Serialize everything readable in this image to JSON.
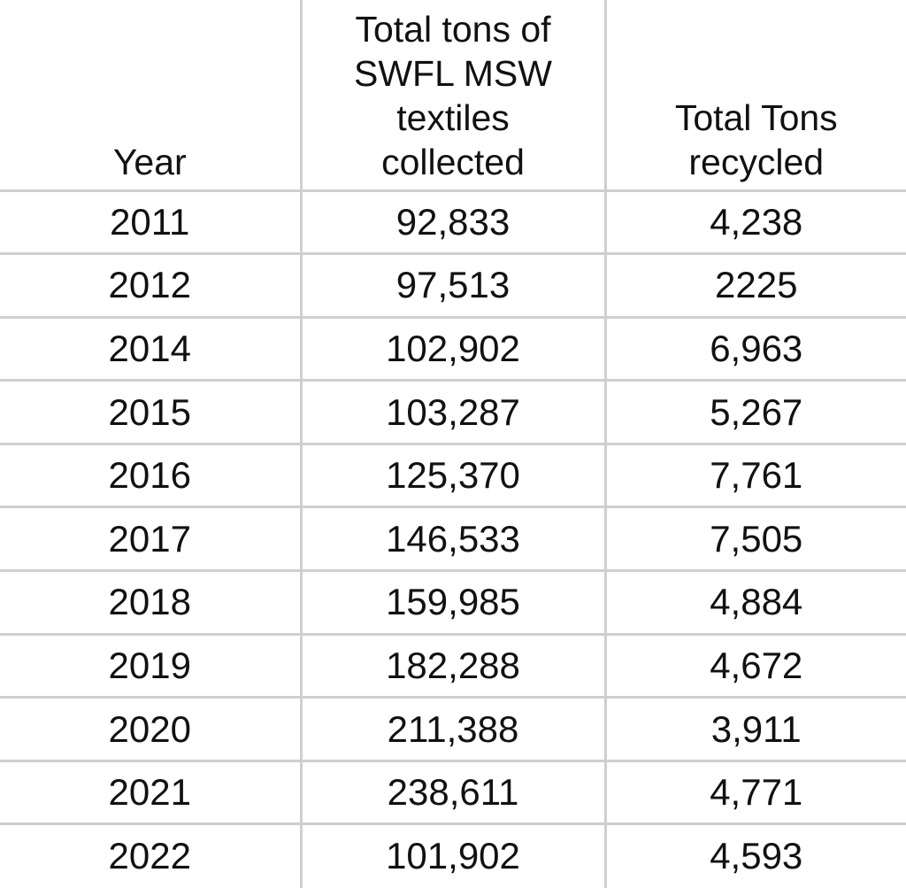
{
  "table": {
    "columns": [
      "Year",
      "Total tons of\nSWFL MSW\ntextiles\ncollected",
      "Total Tons\nrecycled"
    ],
    "rows": [
      [
        "2011",
        "92,833",
        "4,238"
      ],
      [
        "2012",
        "97,513",
        "2225"
      ],
      [
        "2014",
        "102,902",
        "6,963"
      ],
      [
        "2015",
        "103,287",
        "5,267"
      ],
      [
        "2016",
        "125,370",
        "7,761"
      ],
      [
        "2017",
        "146,533",
        "7,505"
      ],
      [
        "2018",
        "159,985",
        "4,884"
      ],
      [
        "2019",
        "182,288",
        "4,672"
      ],
      [
        "2020",
        "211,388",
        "3,911"
      ],
      [
        "2021",
        "238,611",
        "4,771"
      ],
      [
        "2022",
        "101,902",
        "4,593"
      ]
    ]
  }
}
